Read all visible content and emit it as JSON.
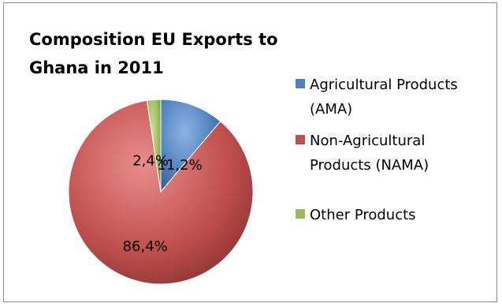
{
  "chart_data": {
    "type": "pie",
    "title": "Composition EU Exports to Ghana in 2011",
    "categories": [
      "Agricultural Products (AMA)",
      "Non-Agricultural Products (NAMA)",
      "Other Products"
    ],
    "values": [
      11.2,
      86.4,
      2.4
    ],
    "data_labels": [
      "11,2%",
      "86,4%",
      "2,4%"
    ],
    "colors": [
      "#4F81BD",
      "#C0504D",
      "#9BBB59"
    ],
    "legend_position": "right",
    "start_angle": "top",
    "direction": "clockwise",
    "shading": "3d-gradient"
  }
}
